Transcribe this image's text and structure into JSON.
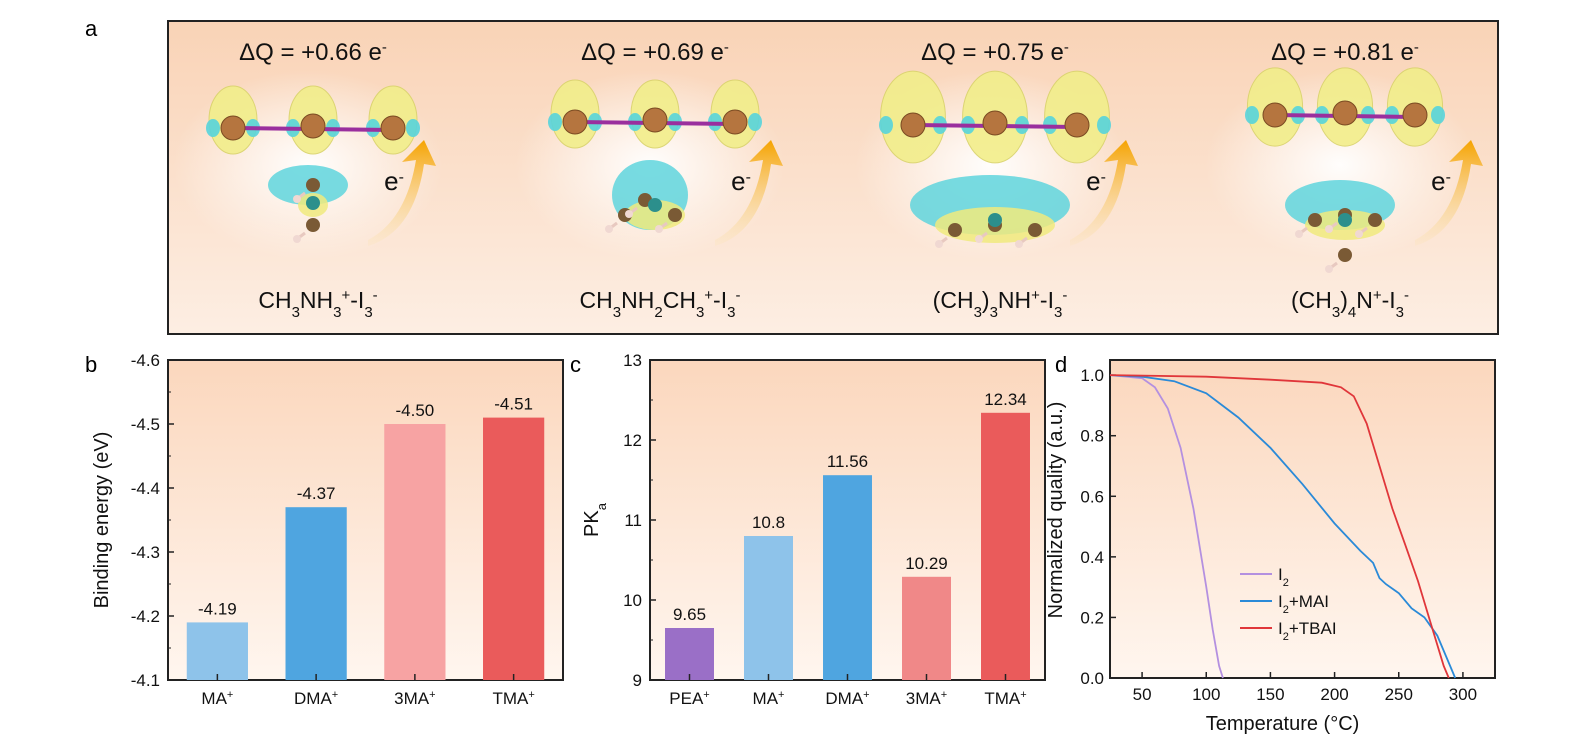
{
  "panel_letters": [
    "a",
    "b",
    "c",
    "d"
  ],
  "panel_a": {
    "structures": [
      {
        "dq": "ΔQ = +0.66 e",
        "dq_sup": "-",
        "formula_html": "CH<tspan baseline-shift='sub' font-size='15'>3</tspan>NH<tspan baseline-shift='sub' font-size='15'>3</tspan><tspan baseline-shift='super' font-size='15'>+</tspan>-I<tspan baseline-shift='sub' font-size='15'>3</tspan><tspan baseline-shift='super' font-size='15'>-</tspan>",
        "label_e": "e",
        "label_e_sup": "-"
      },
      {
        "dq": "ΔQ = +0.69 e",
        "dq_sup": "-",
        "label_e": "e",
        "label_e_sup": "-"
      },
      {
        "dq": "ΔQ = +0.75 e",
        "dq_sup": "-",
        "label_e": "e",
        "label_e_sup": "-"
      },
      {
        "dq": "ΔQ = +0.81 e",
        "dq_sup": "-",
        "label_e": "e",
        "label_e_sup": "-"
      }
    ],
    "formulas": [
      [
        [
          "CH",
          ""
        ],
        [
          "3",
          "sub"
        ],
        [
          "NH",
          ""
        ],
        [
          "3",
          "sub"
        ],
        [
          "+",
          "sup"
        ],
        [
          "-I",
          ""
        ],
        [
          "3",
          "sub"
        ],
        [
          "-",
          "sup"
        ]
      ],
      [
        [
          "CH",
          ""
        ],
        [
          "3",
          "sub"
        ],
        [
          "NH",
          ""
        ],
        [
          "2",
          "sub"
        ],
        [
          "CH",
          ""
        ],
        [
          "3",
          "sub"
        ],
        [
          "+",
          "sup"
        ],
        [
          "-I",
          ""
        ],
        [
          "3",
          "sub"
        ],
        [
          "-",
          "sup"
        ]
      ],
      [
        [
          "(CH",
          ""
        ],
        [
          "3",
          "sub"
        ],
        [
          ")",
          ""
        ],
        [
          "3",
          "sub"
        ],
        [
          "NH",
          ""
        ],
        [
          "+",
          "sup"
        ],
        [
          "-I",
          ""
        ],
        [
          "3",
          "sub"
        ],
        [
          "-",
          "sup"
        ]
      ],
      [
        [
          "(CH",
          ""
        ],
        [
          "3",
          "sub"
        ],
        [
          ")",
          ""
        ],
        [
          "4",
          "sub"
        ],
        [
          "N",
          ""
        ],
        [
          "+",
          "sup"
        ],
        [
          "-I",
          ""
        ],
        [
          "3",
          "sub"
        ],
        [
          "-",
          "sup"
        ]
      ]
    ]
  },
  "chart_data": [
    {
      "type": "bar",
      "panel": "b",
      "categories": [
        "MA",
        "DMA",
        "3MA",
        "TMA"
      ],
      "category_sup": "+",
      "values": [
        -4.19,
        -4.37,
        -4.5,
        -4.51
      ],
      "value_labels": [
        "-4.19",
        "-4.37",
        "-4.50",
        "-4.51"
      ],
      "colors": [
        "#8ec3ea",
        "#4fa5e0",
        "#f7a3a3",
        "#ea5b5b"
      ],
      "ylabel": "Binding energy (eV)",
      "ylim": [
        -4.1,
        -4.6
      ],
      "yticks": [
        "-4.6",
        "-4.5",
        "-4.4",
        "-4.3",
        "-4.2",
        "-4.1"
      ],
      "ytick_values": [
        -4.6,
        -4.5,
        -4.4,
        -4.3,
        -4.2,
        -4.1
      ]
    },
    {
      "type": "bar",
      "panel": "c",
      "categories": [
        "PEA",
        "MA",
        "DMA",
        "3MA",
        "TMA"
      ],
      "category_sup": "+",
      "values": [
        9.65,
        10.8,
        11.56,
        10.29,
        12.34
      ],
      "value_labels": [
        "9.65",
        "10.8",
        "11.56",
        "10.29",
        "12.34"
      ],
      "colors": [
        "#9a6fc7",
        "#8ec3ea",
        "#4fa5e0",
        "#f08888",
        "#ea5b5b"
      ],
      "ylabel_main": "PK",
      "ylabel_sub": "a",
      "ylim": [
        9,
        13
      ],
      "yticks": [
        "9",
        "10",
        "11",
        "12",
        "13"
      ],
      "ytick_values": [
        9,
        10,
        11,
        12,
        13
      ]
    },
    {
      "type": "line",
      "panel": "d",
      "xlabel": "Temperature (°C)",
      "ylabel": "Normalized quality (a.u.)",
      "xlim": [
        25,
        325
      ],
      "ylim": [
        0,
        1.05
      ],
      "xticks": [
        "50",
        "100",
        "150",
        "200",
        "250",
        "300"
      ],
      "xtick_values": [
        50,
        100,
        150,
        200,
        250,
        300
      ],
      "yticks": [
        "0.0",
        "0.2",
        "0.4",
        "0.6",
        "0.8",
        "1.0"
      ],
      "ytick_values": [
        0,
        0.2,
        0.4,
        0.6,
        0.8,
        1.0
      ],
      "series": [
        {
          "name_main": "I",
          "name_sub": "2",
          "name_tail": "",
          "color": "#b490e0",
          "x": [
            25,
            50,
            60,
            70,
            80,
            90,
            100,
            105,
            110,
            113
          ],
          "y": [
            1.0,
            0.99,
            0.96,
            0.89,
            0.76,
            0.56,
            0.3,
            0.16,
            0.04,
            0.0
          ]
        },
        {
          "name_main": "I",
          "name_sub": "2",
          "name_tail": "+MAI",
          "color": "#2a8ad8",
          "x": [
            25,
            50,
            75,
            100,
            125,
            150,
            175,
            200,
            220,
            230,
            235,
            240,
            250,
            260,
            270,
            280,
            290,
            294
          ],
          "y": [
            1.0,
            0.995,
            0.98,
            0.94,
            0.86,
            0.76,
            0.64,
            0.51,
            0.42,
            0.38,
            0.33,
            0.31,
            0.28,
            0.23,
            0.2,
            0.14,
            0.04,
            0.0
          ]
        },
        {
          "name_main": "I",
          "name_sub": "2",
          "name_tail": "+TBAI",
          "color": "#e0363a",
          "x": [
            25,
            100,
            150,
            190,
            205,
            215,
            225,
            235,
            245,
            255,
            265,
            275,
            285,
            289
          ],
          "y": [
            1.0,
            0.995,
            0.985,
            0.975,
            0.96,
            0.93,
            0.84,
            0.7,
            0.56,
            0.44,
            0.32,
            0.18,
            0.04,
            0.0
          ]
        }
      ]
    }
  ]
}
